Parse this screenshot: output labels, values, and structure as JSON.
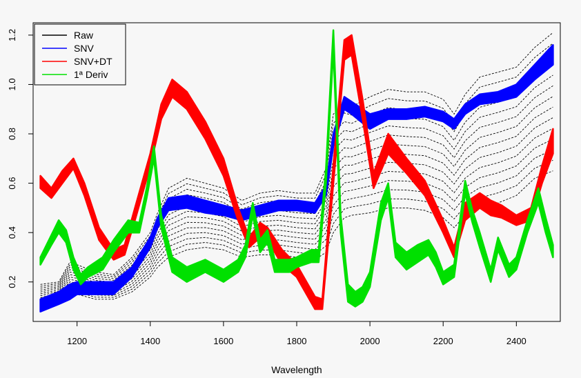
{
  "chart_data": {
    "type": "line",
    "title": "",
    "xlabel": "Wavelength",
    "ylabel": "",
    "xlim": [
      1080,
      2520
    ],
    "ylim": [
      0.04,
      1.25
    ],
    "xticks": [
      1200,
      1400,
      1600,
      1800,
      2000,
      2200,
      2400
    ],
    "yticks": [
      0.2,
      0.4,
      0.6,
      0.8,
      1.0,
      1.2
    ],
    "xtick_labels": [
      "1200",
      "1400",
      "1600",
      "1800",
      "2000",
      "2200",
      "2400"
    ],
    "ytick_labels": [
      "0.2",
      "0.4",
      "0.6",
      "0.8",
      "1.0",
      "1.2"
    ],
    "grid": false,
    "legend_position": "top-left",
    "series": [
      {
        "name": "Raw",
        "color": "#000000",
        "style": "dashed-bundle",
        "x": [
          1100,
          1150,
          1180,
          1200,
          1250,
          1300,
          1350,
          1400,
          1420,
          1450,
          1500,
          1550,
          1600,
          1650,
          1700,
          1750,
          1800,
          1850,
          1880,
          1900,
          1930,
          1950,
          2000,
          2050,
          2100,
          2150,
          2200,
          2230,
          2260,
          2300,
          2350,
          2400,
          2450,
          2500
        ],
        "low": [
          0.09,
          0.12,
          0.15,
          0.15,
          0.13,
          0.13,
          0.16,
          0.22,
          0.26,
          0.3,
          0.33,
          0.34,
          0.33,
          0.3,
          0.31,
          0.31,
          0.3,
          0.29,
          0.32,
          0.4,
          0.46,
          0.47,
          0.48,
          0.5,
          0.5,
          0.49,
          0.46,
          0.42,
          0.47,
          0.5,
          0.52,
          0.55,
          0.62,
          0.65
        ],
        "high": [
          0.19,
          0.2,
          0.28,
          0.27,
          0.24,
          0.23,
          0.3,
          0.4,
          0.48,
          0.58,
          0.62,
          0.6,
          0.58,
          0.53,
          0.56,
          0.57,
          0.56,
          0.56,
          0.66,
          0.88,
          0.92,
          0.91,
          0.95,
          0.98,
          0.97,
          0.97,
          0.94,
          0.88,
          0.96,
          1.03,
          1.05,
          1.07,
          1.15,
          1.21
        ]
      },
      {
        "name": "SNV",
        "color": "#0000ff",
        "style": "band",
        "x": [
          1100,
          1150,
          1180,
          1200,
          1250,
          1300,
          1350,
          1400,
          1420,
          1450,
          1500,
          1550,
          1600,
          1650,
          1700,
          1750,
          1800,
          1850,
          1880,
          1900,
          1930,
          1950,
          2000,
          2050,
          2100,
          2150,
          2200,
          2230,
          2260,
          2300,
          2350,
          2400,
          2450,
          2500
        ],
        "low": [
          0.08,
          0.11,
          0.13,
          0.15,
          0.15,
          0.15,
          0.22,
          0.34,
          0.42,
          0.49,
          0.5,
          0.48,
          0.47,
          0.45,
          0.47,
          0.49,
          0.49,
          0.48,
          0.55,
          0.75,
          0.9,
          0.88,
          0.82,
          0.86,
          0.86,
          0.87,
          0.85,
          0.82,
          0.88,
          0.92,
          0.93,
          0.95,
          1.02,
          1.08
        ],
        "high": [
          0.13,
          0.16,
          0.19,
          0.2,
          0.2,
          0.2,
          0.26,
          0.38,
          0.46,
          0.54,
          0.55,
          0.53,
          0.51,
          0.49,
          0.51,
          0.53,
          0.53,
          0.52,
          0.59,
          0.8,
          0.95,
          0.93,
          0.88,
          0.9,
          0.9,
          0.91,
          0.89,
          0.86,
          0.92,
          0.96,
          0.97,
          1.0,
          1.08,
          1.16
        ]
      },
      {
        "name": "SNV+DT",
        "color": "#ff0000",
        "style": "band",
        "x": [
          1100,
          1130,
          1160,
          1190,
          1220,
          1260,
          1300,
          1330,
          1360,
          1400,
          1430,
          1460,
          1500,
          1550,
          1600,
          1640,
          1670,
          1700,
          1720,
          1760,
          1800,
          1850,
          1870,
          1900,
          1930,
          1950,
          1980,
          2010,
          2050,
          2100,
          2150,
          2200,
          2230,
          2260,
          2300,
          2330,
          2360,
          2400,
          2440,
          2470,
          2500
        ],
        "low": [
          0.58,
          0.54,
          0.6,
          0.66,
          0.55,
          0.37,
          0.29,
          0.31,
          0.46,
          0.67,
          0.86,
          0.95,
          0.9,
          0.78,
          0.63,
          0.45,
          0.34,
          0.38,
          0.37,
          0.27,
          0.22,
          0.09,
          0.09,
          0.6,
          1.1,
          1.12,
          0.86,
          0.58,
          0.72,
          0.64,
          0.55,
          0.4,
          0.3,
          0.45,
          0.5,
          0.47,
          0.46,
          0.43,
          0.45,
          0.6,
          0.72
        ],
        "high": [
          0.63,
          0.58,
          0.65,
          0.7,
          0.6,
          0.42,
          0.33,
          0.35,
          0.51,
          0.72,
          0.92,
          1.02,
          0.97,
          0.85,
          0.7,
          0.5,
          0.38,
          0.44,
          0.42,
          0.33,
          0.27,
          0.14,
          0.13,
          0.67,
          1.18,
          1.2,
          0.94,
          0.64,
          0.8,
          0.7,
          0.61,
          0.45,
          0.34,
          0.52,
          0.56,
          0.53,
          0.51,
          0.47,
          0.5,
          0.67,
          0.82
        ]
      },
      {
        "name": "1ª Deriv",
        "color": "#00e000",
        "style": "band",
        "x": [
          1100,
          1130,
          1150,
          1170,
          1190,
          1210,
          1230,
          1270,
          1300,
          1340,
          1370,
          1390,
          1410,
          1430,
          1460,
          1500,
          1550,
          1600,
          1640,
          1660,
          1680,
          1700,
          1720,
          1740,
          1780,
          1800,
          1840,
          1860,
          1880,
          1900,
          1920,
          1940,
          1960,
          1980,
          2000,
          2030,
          2050,
          2070,
          2100,
          2130,
          2160,
          2180,
          2200,
          2230,
          2260,
          2280,
          2300,
          2330,
          2350,
          2380,
          2400,
          2430,
          2460,
          2480,
          2500
        ],
        "low": [
          0.27,
          0.35,
          0.4,
          0.36,
          0.25,
          0.19,
          0.22,
          0.25,
          0.32,
          0.4,
          0.4,
          0.54,
          0.7,
          0.42,
          0.24,
          0.2,
          0.24,
          0.2,
          0.24,
          0.3,
          0.47,
          0.32,
          0.36,
          0.24,
          0.24,
          0.26,
          0.28,
          0.28,
          0.6,
          1.14,
          0.4,
          0.12,
          0.1,
          0.12,
          0.18,
          0.45,
          0.54,
          0.3,
          0.25,
          0.28,
          0.31,
          0.26,
          0.19,
          0.22,
          0.56,
          0.44,
          0.34,
          0.2,
          0.33,
          0.22,
          0.25,
          0.4,
          0.52,
          0.4,
          0.3
        ],
        "high": [
          0.3,
          0.39,
          0.45,
          0.41,
          0.3,
          0.23,
          0.26,
          0.3,
          0.37,
          0.45,
          0.44,
          0.58,
          0.75,
          0.47,
          0.3,
          0.26,
          0.29,
          0.25,
          0.29,
          0.35,
          0.52,
          0.37,
          0.41,
          0.29,
          0.29,
          0.3,
          0.33,
          0.33,
          0.66,
          1.22,
          0.47,
          0.19,
          0.16,
          0.18,
          0.24,
          0.52,
          0.6,
          0.36,
          0.32,
          0.35,
          0.37,
          0.32,
          0.24,
          0.27,
          0.61,
          0.49,
          0.4,
          0.25,
          0.38,
          0.27,
          0.3,
          0.45,
          0.58,
          0.46,
          0.35
        ]
      }
    ]
  }
}
